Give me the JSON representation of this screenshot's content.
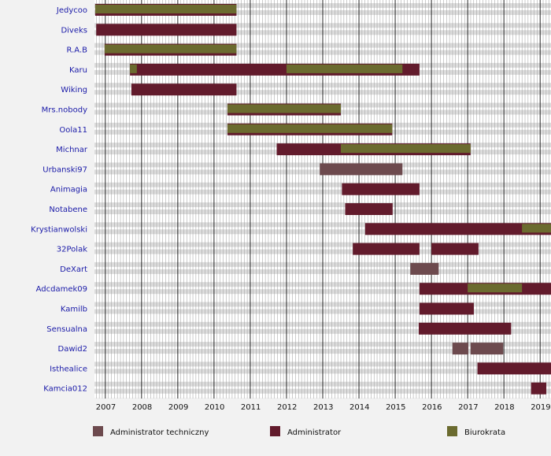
{
  "chart_data": {
    "type": "timeline",
    "x_axis": {
      "unit": "year",
      "range": [
        2006.7,
        2019.3
      ],
      "tick_labels": [
        "2007",
        "2008",
        "2009",
        "2010",
        "2011",
        "2012",
        "2013",
        "2014",
        "2015",
        "2016",
        "2017",
        "2018",
        "2019"
      ],
      "minor_grid": "monthly"
    },
    "grid": true,
    "categories": [
      "Jedycoo",
      "Diveks",
      "R.A.B",
      "Karu",
      "Wiking",
      "Mrs.nobody",
      "Oola11",
      "Michnar",
      "Urbanski97",
      "Animagia",
      "Notabene",
      "Krystianwolski",
      "32Polak",
      "DeXart",
      "Adcdamek09",
      "Kamilb",
      "Sensualna",
      "Dawid2",
      "Isthealice",
      "Kamcia012"
    ],
    "legend": {
      "position": "bottom",
      "items": [
        {
          "key": "tech",
          "label": "Administrator techniczny",
          "color": "#6d4a4e"
        },
        {
          "key": "admin",
          "label": "Administrator",
          "color": "#621b2c"
        },
        {
          "key": "bureau",
          "label": "Biurokrata",
          "color": "#6b6b2f"
        }
      ]
    },
    "tenures": [
      {
        "user": "Jedycoo",
        "role": "admin",
        "start": 2006.72,
        "end": 2010.62
      },
      {
        "user": "Jedycoo",
        "role": "bureau",
        "start": 2006.72,
        "end": 2010.62
      },
      {
        "user": "Diveks",
        "role": "admin",
        "start": 2006.75,
        "end": 2010.62
      },
      {
        "user": "R.A.B",
        "role": "admin",
        "start": 2006.98,
        "end": 2010.62
      },
      {
        "user": "R.A.B",
        "role": "bureau",
        "start": 2006.98,
        "end": 2010.62
      },
      {
        "user": "Karu",
        "role": "admin",
        "start": 2007.68,
        "end": 2015.67
      },
      {
        "user": "Karu",
        "role": "bureau",
        "start": 2007.68,
        "end": 2007.87
      },
      {
        "user": "Karu",
        "role": "bureau",
        "start": 2012.0,
        "end": 2015.2
      },
      {
        "user": "Wiking",
        "role": "admin",
        "start": 2007.72,
        "end": 2010.62
      },
      {
        "user": "Mrs.nobody",
        "role": "admin",
        "start": 2010.37,
        "end": 2013.5
      },
      {
        "user": "Mrs.nobody",
        "role": "bureau",
        "start": 2010.37,
        "end": 2013.5
      },
      {
        "user": "Oola11",
        "role": "admin",
        "start": 2010.37,
        "end": 2014.92
      },
      {
        "user": "Oola11",
        "role": "bureau",
        "start": 2010.37,
        "end": 2014.92
      },
      {
        "user": "Michnar",
        "role": "admin",
        "start": 2011.73,
        "end": 2017.08
      },
      {
        "user": "Michnar",
        "role": "bureau",
        "start": 2013.5,
        "end": 2017.08
      },
      {
        "user": "Urbanski97",
        "role": "tech",
        "start": 2012.92,
        "end": 2015.2
      },
      {
        "user": "Animagia",
        "role": "admin",
        "start": 2013.53,
        "end": 2015.67
      },
      {
        "user": "Notabene",
        "role": "admin",
        "start": 2013.62,
        "end": 2014.93
      },
      {
        "user": "Krystianwolski",
        "role": "admin",
        "start": 2014.17,
        "end": 2019.3
      },
      {
        "user": "Krystianwolski",
        "role": "bureau",
        "start": 2018.5,
        "end": 2019.3
      },
      {
        "user": "32Polak",
        "role": "admin",
        "start": 2013.83,
        "end": 2015.67
      },
      {
        "user": "32Polak",
        "role": "admin",
        "start": 2016.0,
        "end": 2017.3
      },
      {
        "user": "DeXart",
        "role": "tech",
        "start": 2015.42,
        "end": 2016.2
      },
      {
        "user": "Adcdamek09",
        "role": "admin",
        "start": 2015.67,
        "end": 2019.3
      },
      {
        "user": "Adcdamek09",
        "role": "bureau",
        "start": 2017.0,
        "end": 2018.5
      },
      {
        "user": "Kamilb",
        "role": "admin",
        "start": 2015.67,
        "end": 2017.17
      },
      {
        "user": "Sensualna",
        "role": "admin",
        "start": 2015.65,
        "end": 2018.2
      },
      {
        "user": "Dawid2",
        "role": "tech",
        "start": 2016.58,
        "end": 2017.02
      },
      {
        "user": "Dawid2",
        "role": "tech",
        "start": 2017.08,
        "end": 2017.98
      },
      {
        "user": "Isthealice",
        "role": "admin",
        "start": 2017.27,
        "end": 2019.3
      },
      {
        "user": "Kamcia012",
        "role": "admin",
        "start": 2018.75,
        "end": 2019.17
      }
    ]
  }
}
